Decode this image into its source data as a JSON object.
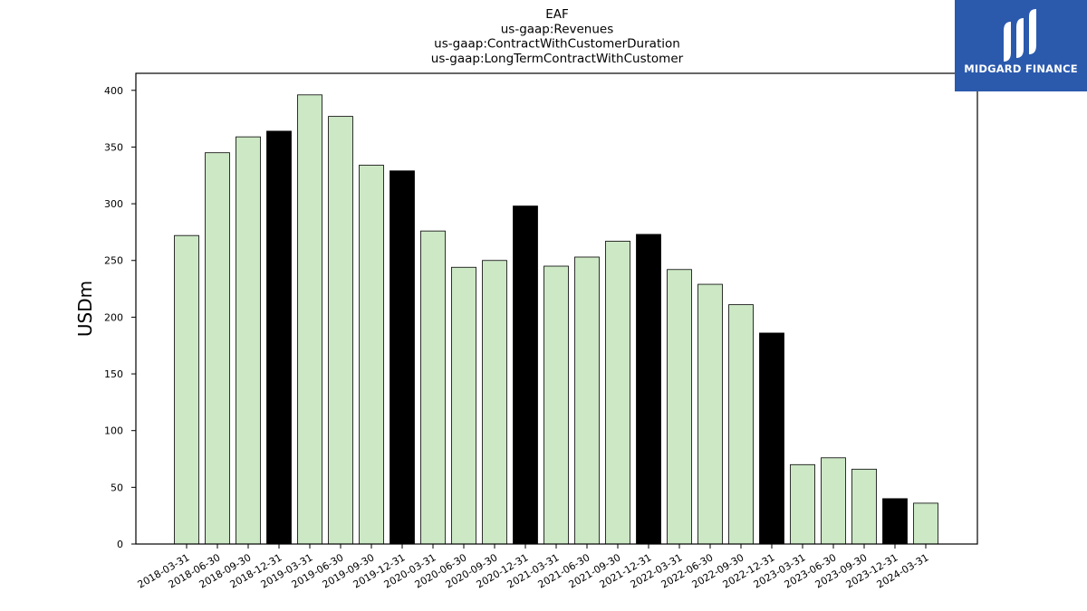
{
  "chart_data": {
    "type": "bar",
    "title_lines": [
      "EAF",
      "us-gaap:Revenues",
      "us-gaap:ContractWithCustomerDuration",
      "us-gaap:LongTermContractWithCustomer"
    ],
    "ylabel": "USDm",
    "xlabel": "",
    "ylim": [
      0,
      415
    ],
    "yticks": [
      0,
      50,
      100,
      150,
      200,
      250,
      300,
      350,
      400
    ],
    "categories": [
      "2018-03-31",
      "2018-06-30",
      "2018-09-30",
      "2018-12-31",
      "2019-03-31",
      "2019-06-30",
      "2019-09-30",
      "2019-12-31",
      "2020-03-31",
      "2020-06-30",
      "2020-09-30",
      "2020-12-31",
      "2021-03-31",
      "2021-06-30",
      "2021-09-30",
      "2021-12-31",
      "2022-03-31",
      "2022-06-30",
      "2022-09-30",
      "2022-12-31",
      "2023-03-31",
      "2023-06-30",
      "2023-09-30",
      "2023-12-31",
      "2024-03-31"
    ],
    "values": [
      272,
      345,
      359,
      364,
      396,
      377,
      334,
      329,
      276,
      244,
      250,
      298,
      245,
      253,
      267,
      273,
      242,
      229,
      211,
      186,
      70,
      76,
      66,
      40,
      36
    ],
    "colors": {
      "quarter": "#cce8c5",
      "year_end": "#000000",
      "edge": "#000000"
    }
  },
  "logo": {
    "text": "MIDGARD FINANCE",
    "background": "#2b5aad"
  }
}
